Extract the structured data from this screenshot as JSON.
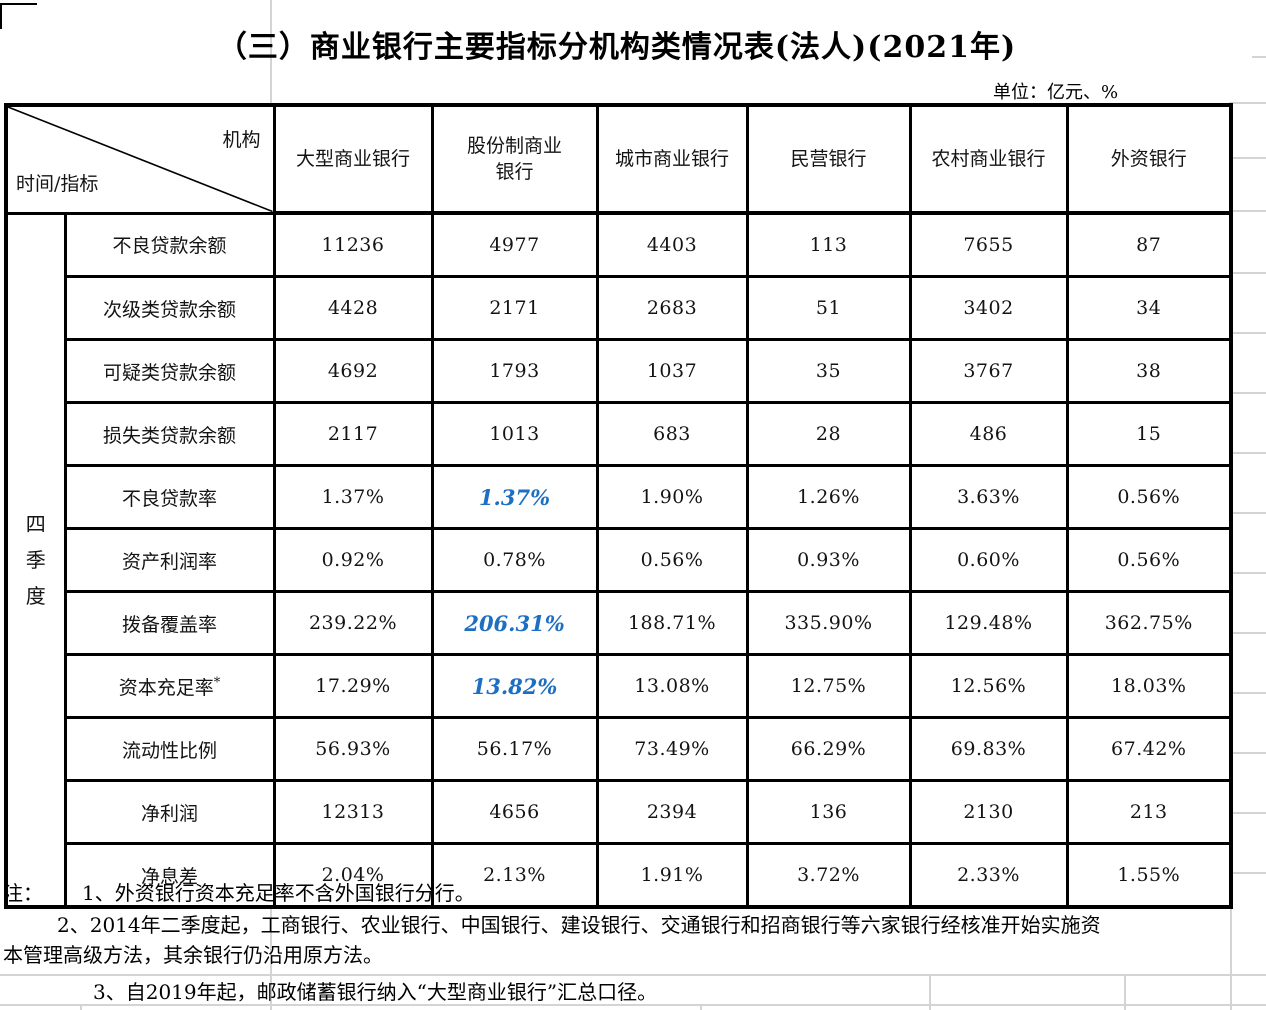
{
  "title": "（三）商业银行主要指标分机构类情况表(法人)(2021年)",
  "unit_label": "单位：亿元、%",
  "corner": {
    "top_right": "机构",
    "bottom_left": "时间/指标"
  },
  "period_label": "四季度",
  "columns": [
    "大型商业银行",
    "股份制商业银行",
    "城市商业银行",
    "民营银行",
    "农村商业银行",
    "外资银行"
  ],
  "rows": [
    {
      "label": "不良贷款余额",
      "values": [
        "11236",
        "4977",
        "4403",
        "113",
        "7655",
        "87"
      ]
    },
    {
      "label": "次级类贷款余额",
      "values": [
        "4428",
        "2171",
        "2683",
        "51",
        "3402",
        "34"
      ]
    },
    {
      "label": "可疑类贷款余额",
      "values": [
        "4692",
        "1793",
        "1037",
        "35",
        "3767",
        "38"
      ]
    },
    {
      "label": "损失类贷款余额",
      "values": [
        "2117",
        "1013",
        "683",
        "28",
        "486",
        "15"
      ]
    },
    {
      "label": "不良贷款率",
      "values": [
        "1.37%",
        "1.37%",
        "1.90%",
        "1.26%",
        "3.63%",
        "0.56%"
      ],
      "highlight": [
        1
      ]
    },
    {
      "label": "资产利润率",
      "values": [
        "0.92%",
        "0.78%",
        "0.56%",
        "0.93%",
        "0.60%",
        "0.56%"
      ]
    },
    {
      "label": "拨备覆盖率",
      "values": [
        "239.22%",
        "206.31%",
        "188.71%",
        "335.90%",
        "129.48%",
        "362.75%"
      ],
      "highlight": [
        1
      ]
    },
    {
      "label": "资本充足率",
      "label_sup": "*",
      "values": [
        "17.29%",
        "13.82%",
        "13.08%",
        "12.75%",
        "12.56%",
        "18.03%"
      ],
      "highlight": [
        1
      ]
    },
    {
      "label": "流动性比例",
      "values": [
        "56.93%",
        "56.17%",
        "73.49%",
        "66.29%",
        "69.83%",
        "67.42%"
      ]
    },
    {
      "label": "净利润",
      "values": [
        "12313",
        "4656",
        "2394",
        "136",
        "2130",
        "213"
      ]
    },
    {
      "label": "净息差",
      "values": [
        "2.04%",
        "2.13%",
        "1.91%",
        "3.72%",
        "2.33%",
        "1.55%"
      ]
    }
  ],
  "notes": {
    "prefix": "注：",
    "items": [
      "1、外资银行资本充足率不含外国银行分行。",
      "2、2014年二季度起，工商银行、农业银行、中国银行、建设银行、交通银行和招商银行等六家银行经核准开始实施资本管理高级方法，其余银行仍沿用原方法。",
      "3、自2019年起，邮政储蓄银行纳入“大型商业银行”汇总口径。"
    ]
  },
  "colors": {
    "highlight_blue": "#1e6ec2",
    "table_border": "#000000",
    "gridline_gray": "#d4d4d4"
  }
}
